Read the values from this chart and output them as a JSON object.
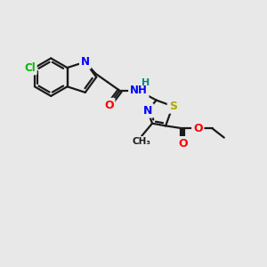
{
  "background_color": "#e8e8e8",
  "bond_color": "#1a1a1a",
  "atom_colors": {
    "N": "#0000ff",
    "O": "#ff0000",
    "S": "#aaaa00",
    "Cl": "#00bb00",
    "H": "#008888",
    "C": "#1a1a1a"
  },
  "figsize": [
    3.0,
    3.0
  ],
  "dpi": 100
}
